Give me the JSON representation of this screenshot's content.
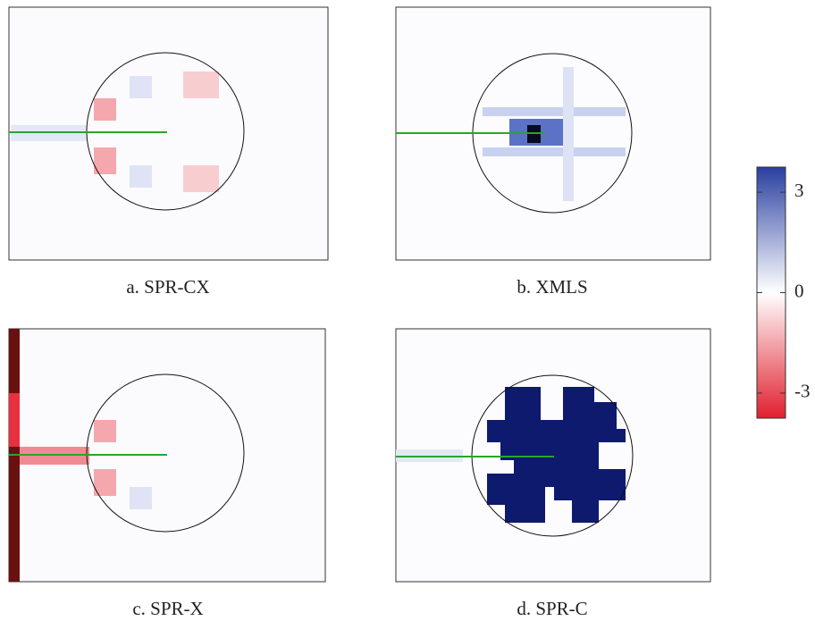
{
  "panels": [
    {
      "caption": "a. SPR-CX"
    },
    {
      "caption": "b. XMLS"
    },
    {
      "caption": "c. SPR-X"
    },
    {
      "caption": "d. SPR-C"
    }
  ],
  "colorbar": {
    "range": [
      -3.75,
      3.75
    ],
    "ticks": [
      3,
      0,
      -3
    ]
  }
}
